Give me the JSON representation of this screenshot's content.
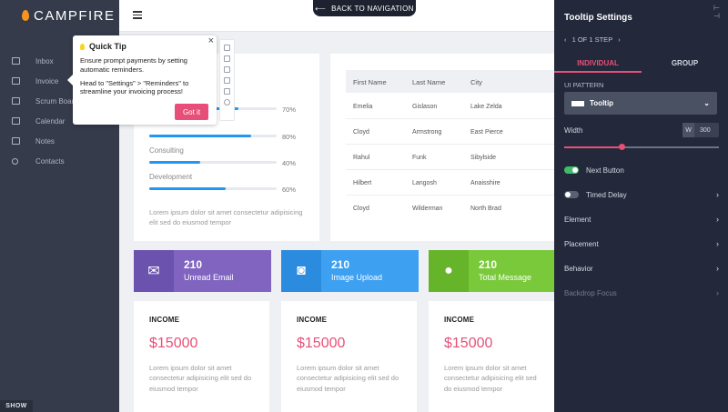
{
  "app": {
    "brand": "CAMPFIRE"
  },
  "sidebar": {
    "items": [
      {
        "label": "Inbox",
        "icon": "mail-icon"
      },
      {
        "label": "Invoice",
        "icon": "invoice-icon"
      },
      {
        "label": "Scrum Board",
        "icon": "checkbox-icon"
      },
      {
        "label": "Calendar",
        "icon": "calendar-icon"
      },
      {
        "label": "Notes",
        "icon": "notes-icon"
      },
      {
        "label": "Contacts",
        "icon": "contact-icon"
      }
    ],
    "show_label": "SHOW"
  },
  "topbar": {
    "back_label": "BACK TO NAVIGATION"
  },
  "skills": {
    "items": [
      {
        "label": "",
        "pct": "70%",
        "fill": 0.7
      },
      {
        "label": "",
        "pct": "80%",
        "fill": 0.8
      },
      {
        "label": "Consulting",
        "pct": "40%",
        "fill": 0.4
      },
      {
        "label": "Development",
        "pct": "60%",
        "fill": 0.6
      }
    ],
    "lorem": "Lorem ipsum dolor sit amet consectetur adipisicing elit sed do eiusmod tempor"
  },
  "table": {
    "headers": [
      "First Name",
      "Last Name",
      "City"
    ],
    "rows": [
      [
        "Emelia",
        "Gislason",
        "Lake Zelda"
      ],
      [
        "Cloyd",
        "Armstrong",
        "East Pierce"
      ],
      [
        "Rahul",
        "Funk",
        "Sibylside"
      ],
      [
        "Hilbert",
        "Langosh",
        "Anaisshire"
      ],
      [
        "Cloyd",
        "Wilderman",
        "North Brad"
      ]
    ]
  },
  "stats": [
    {
      "value": "210",
      "label": "Unread Email",
      "color": "#8064c0",
      "icon_color": "#6a52ae"
    },
    {
      "value": "210",
      "label": "Image Upload",
      "color": "#3ea0f0",
      "icon_color": "#2b8bde"
    },
    {
      "value": "210",
      "label": "Total Message",
      "color": "#79c93a",
      "icon_color": "#66b42a"
    }
  ],
  "income": [
    {
      "title": "INCOME",
      "value": "$15000",
      "desc": "Lorem ipsum dolor sit amet consectetur adipisicing elit sed do eiusmod tempor"
    },
    {
      "title": "INCOME",
      "value": "$15000",
      "desc": "Lorem ipsum dolor sit amet consectetur adipisicing elit sed do eiusmod tempor"
    },
    {
      "title": "INCOME",
      "value": "$15000",
      "desc": "Lorem ipsum dolor sit amet consectetur adipisicing elit sed do eiusmod tempor"
    }
  ],
  "tooltip": {
    "title": "Quick Tip",
    "line1": "Ensure prompt payments by setting automatic reminders.",
    "line2": "Head to \"Settings\" > \"Reminders\" to streamline your invoicing process!",
    "button": "Got it",
    "close": "×"
  },
  "panel": {
    "title": "Tooltip Settings",
    "step": "1 OF 1 STEP",
    "tabs": [
      "INDIVIDUAL",
      "GROUP"
    ],
    "ui_pattern_label": "UI PATTERN",
    "ui_pattern_value": "Tooltip",
    "width_label": "Width",
    "width_unit": "W",
    "width_value": "300",
    "width_fill": 0.37,
    "next_button_label": "Next Button",
    "next_button_on": true,
    "timed_delay_label": "Timed Delay",
    "timed_delay_on": false,
    "rows": [
      "Element",
      "Placement",
      "Behavior",
      "Backdrop Focus"
    ],
    "accent": "#e84f78"
  }
}
